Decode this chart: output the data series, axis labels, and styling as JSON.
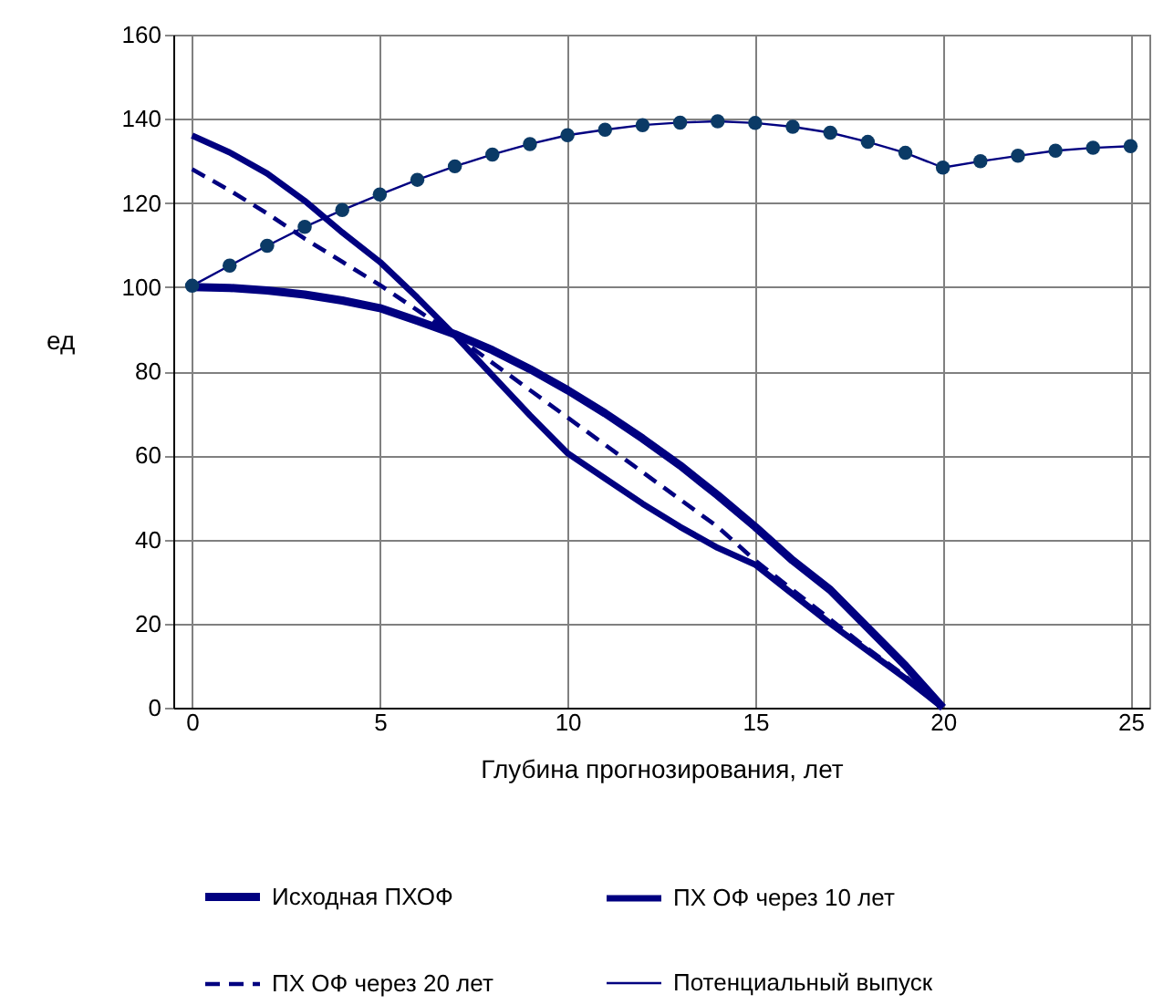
{
  "chart_data": {
    "type": "line",
    "xlabel": "Глубина прогнозирования, лет",
    "ylabel": "ед",
    "x": [
      0,
      1,
      2,
      3,
      4,
      5,
      6,
      7,
      8,
      9,
      10,
      11,
      12,
      13,
      14,
      15,
      16,
      17,
      18,
      19,
      20,
      21,
      22,
      23,
      24,
      25
    ],
    "xlim": [
      -0.5,
      25.5
    ],
    "xticks": [
      0,
      5,
      10,
      15,
      20,
      25
    ],
    "ylim": [
      0,
      160
    ],
    "yticks": [
      0,
      20,
      40,
      60,
      80,
      100,
      120,
      140,
      160
    ],
    "grid": true,
    "legend": "bottom",
    "series": [
      {
        "name": "Исходная ПХОФ",
        "color": "#000080",
        "line_style": "solid",
        "marker": "none",
        "values": [
          100,
          99.8,
          99.2,
          98.2,
          96.8,
          95,
          92,
          88.8,
          85,
          80.5,
          75.5,
          70,
          64,
          57.6,
          50.5,
          43,
          35,
          28,
          19,
          10,
          0,
          null,
          null,
          null,
          null,
          null
        ]
      },
      {
        "name": "ПХ ОФ через 10  лет",
        "color": "#000080",
        "line_style": "solid",
        "marker": "none",
        "values": [
          136,
          132,
          127,
          120.5,
          113,
          106,
          97.5,
          88.5,
          79,
          69.5,
          60.5,
          54.5,
          48.5,
          43,
          38,
          34,
          27,
          20,
          13.5,
          7,
          0,
          null,
          null,
          null,
          null,
          null
        ]
      },
      {
        "name": "ПХ ОФ через 20  лет",
        "color": "#000080",
        "line_style": "dashed",
        "marker": "none",
        "values": [
          128,
          123,
          117.5,
          111.5,
          106,
          100.5,
          94.5,
          88.5,
          82,
          75.5,
          69,
          62.5,
          56,
          49.5,
          43,
          35,
          28,
          21,
          14,
          7.5,
          0,
          null,
          null,
          null,
          null,
          null
        ]
      },
      {
        "name": "Потенциальный  выпуск",
        "color": "#000080",
        "line_style": "solid",
        "marker": "circle",
        "values": [
          100.3,
          105.1,
          109.8,
          114.3,
          118.3,
          122,
          125.5,
          128.7,
          131.5,
          134,
          136.1,
          137.4,
          138.5,
          139.1,
          139.4,
          139,
          138.1,
          136.7,
          134.5,
          131.9,
          128.4,
          129.9,
          131.2,
          132.4,
          133.1,
          133.5
        ]
      }
    ]
  }
}
